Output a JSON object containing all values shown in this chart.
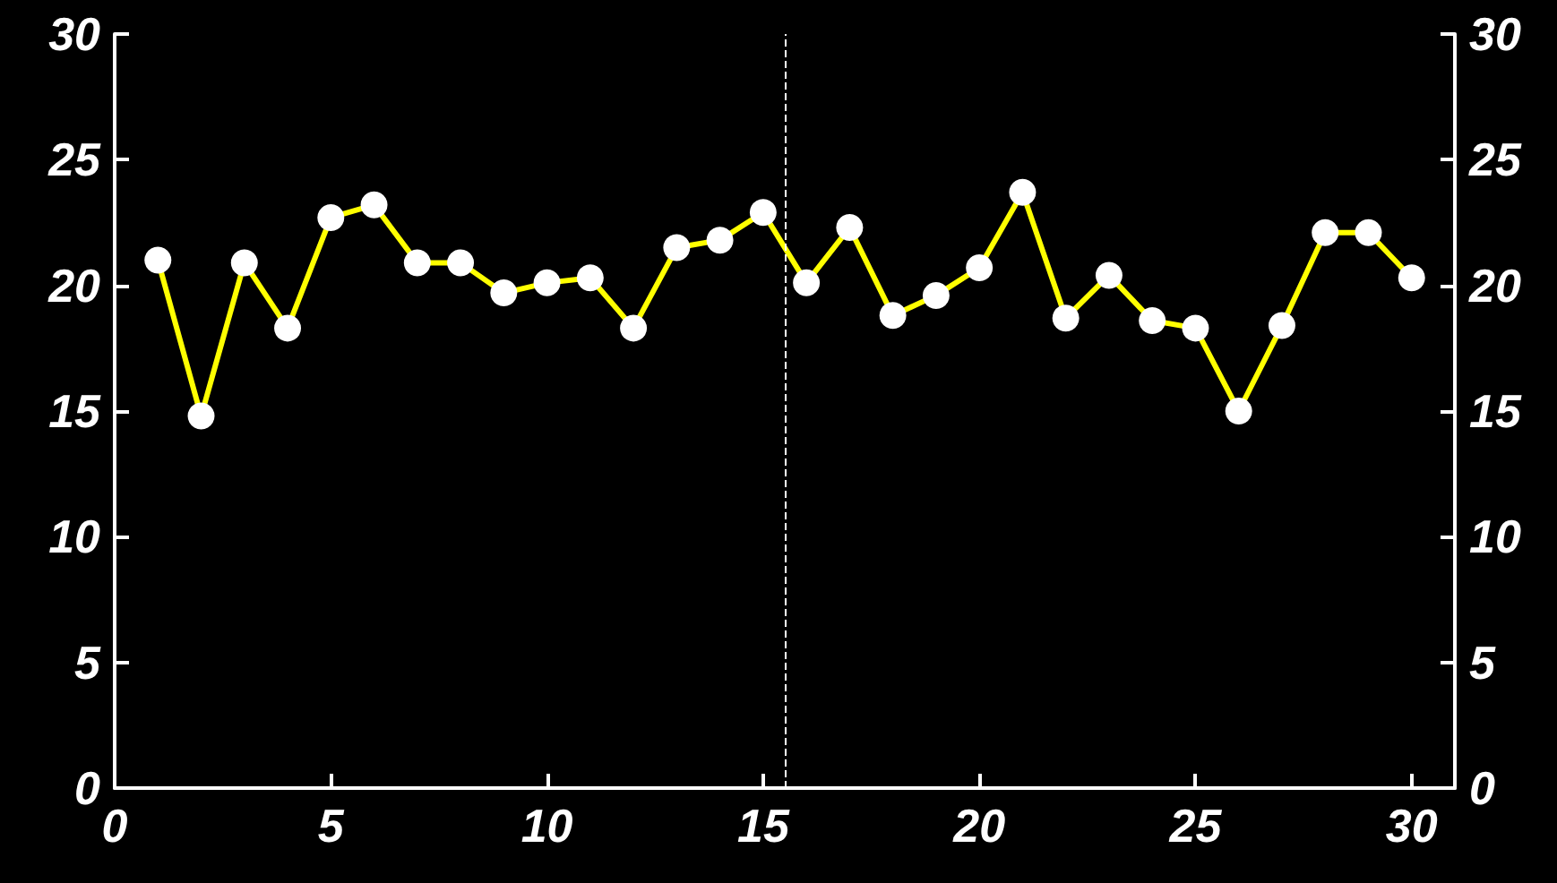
{
  "chart_data": {
    "type": "line",
    "x": [
      1,
      2,
      3,
      4,
      5,
      6,
      7,
      8,
      9,
      10,
      11,
      12,
      13,
      14,
      15,
      16,
      17,
      18,
      19,
      20,
      21,
      22,
      23,
      24,
      25,
      26,
      27,
      28,
      29,
      30
    ],
    "series": [
      {
        "color": "#ffff00",
        "values": [
          21.0,
          14.8,
          20.9,
          18.3,
          22.7,
          23.2,
          20.9,
          20.9,
          19.7,
          20.1,
          20.3,
          18.3,
          21.5,
          21.8,
          22.9,
          20.1,
          22.3,
          18.8,
          19.6,
          20.7,
          23.7,
          18.7,
          20.4,
          18.6,
          18.3,
          15.0,
          18.4,
          22.1,
          22.1,
          20.3
        ]
      }
    ],
    "xlim": [
      0,
      31
    ],
    "xticks": [
      0,
      5,
      10,
      15,
      20,
      25,
      30
    ],
    "ylim": [
      0,
      30
    ],
    "yticks": [
      0,
      5,
      10,
      15,
      20,
      25,
      30
    ],
    "y2lim": [
      0,
      30
    ],
    "y2ticks": [
      0,
      5,
      10,
      15,
      20,
      25,
      30
    ],
    "ref_lines": [
      {
        "axis": "x",
        "value": 15.5,
        "color": "#ffffff",
        "line_style": "dashed"
      }
    ],
    "marker": "circle",
    "line_style": "solid",
    "grid": false
  }
}
